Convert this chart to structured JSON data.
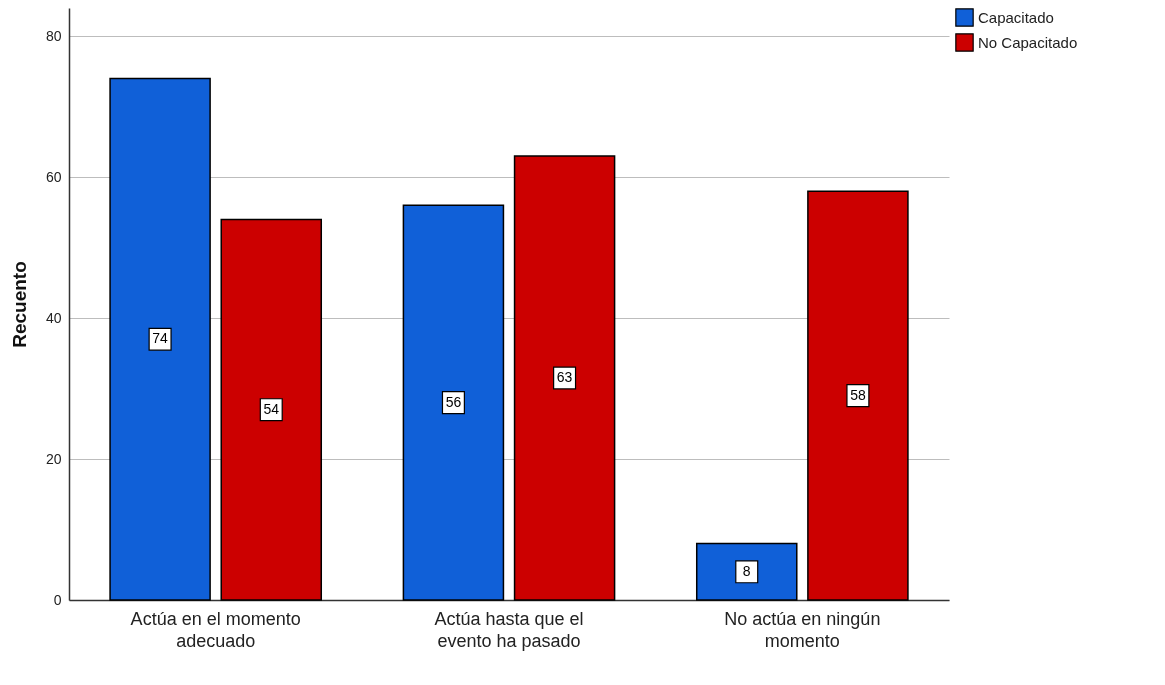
{
  "chart_data": {
    "type": "bar",
    "ylabel": "Recuento",
    "categories": [
      "Actúa en el momento adecuado",
      "Actúa hasta que el evento ha pasado",
      "No actúa en ningún momento"
    ],
    "series": [
      {
        "name": "Capacitado",
        "color": "#1060d8",
        "values": [
          74,
          56,
          8
        ]
      },
      {
        "name": "No Capacitado",
        "color": "#cc0000",
        "values": [
          54,
          63,
          58
        ]
      }
    ],
    "ylim": [
      0,
      84
    ],
    "yticks": [
      0,
      20,
      40,
      60,
      80
    ],
    "grid": "y",
    "legend": "top right",
    "data_labels": true
  }
}
